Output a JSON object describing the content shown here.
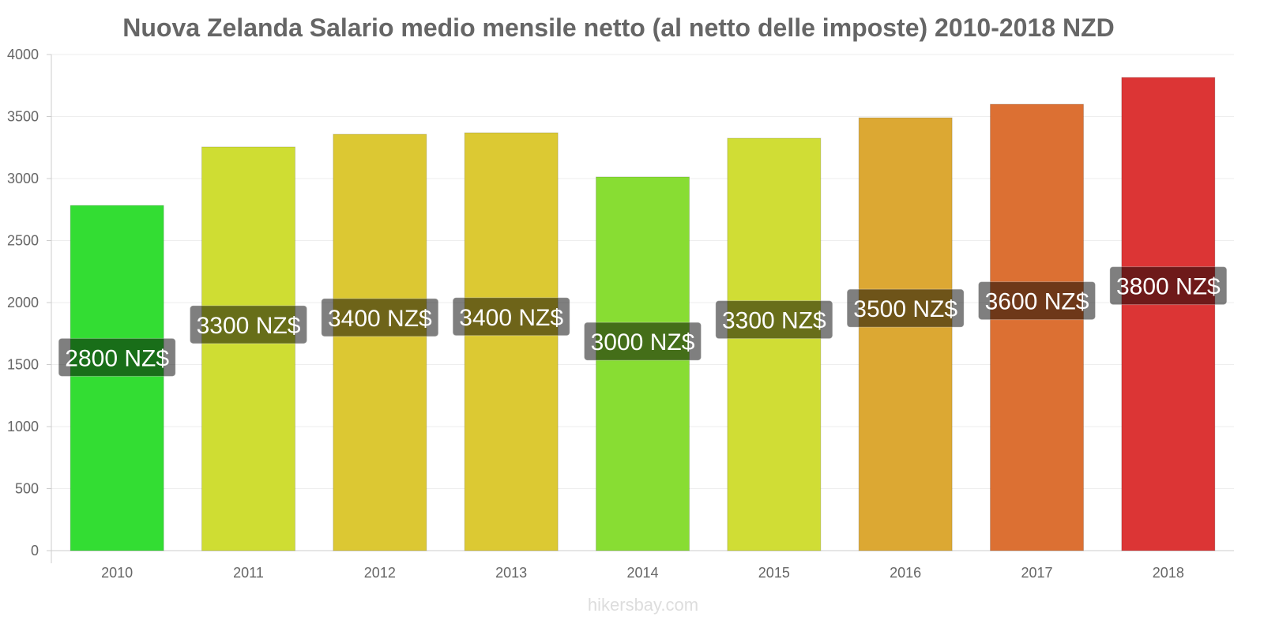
{
  "chart_data": {
    "type": "bar",
    "title": "Nuova Zelanda Salario medio mensile netto (al netto delle imposte) 2010-2018 NZD",
    "categories": [
      "2010",
      "2011",
      "2012",
      "2013",
      "2014",
      "2015",
      "2016",
      "2017",
      "2018"
    ],
    "values": [
      2783,
      3255,
      3357,
      3369,
      3013,
      3325,
      3490,
      3599,
      3815
    ],
    "data_labels": [
      "2800 NZ$",
      "3300 NZ$",
      "3400 NZ$",
      "3400 NZ$",
      "3000 NZ$",
      "3300 NZ$",
      "3500 NZ$",
      "3600 NZ$",
      "3800 NZ$"
    ],
    "colors": [
      "#33dd33",
      "#cfdd33",
      "#dcc833",
      "#dcc933",
      "#88dd33",
      "#d0dd35",
      "#dca833",
      "#dc7033",
      "#dc3535"
    ],
    "yticks": [
      0,
      500,
      1000,
      1500,
      2000,
      2500,
      3000,
      3500,
      4000
    ],
    "ylim": [
      0,
      4000
    ],
    "xlabel": "",
    "ylabel": "",
    "grid": true
  },
  "watermark": "hikersbay.com"
}
